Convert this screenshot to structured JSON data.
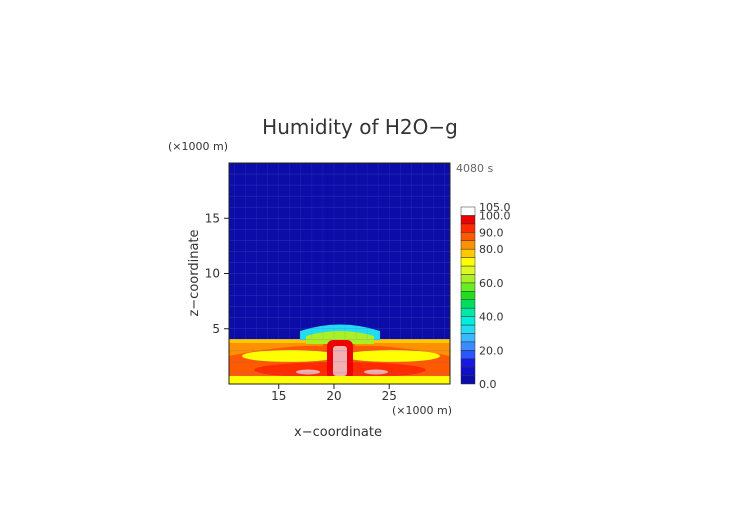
{
  "chart_data": {
    "type": "heatmap",
    "title": "Humidity of H2O−g",
    "time_label": "4080 s",
    "xlabel": "x−coordinate",
    "ylabel": "z−coordinate",
    "x_unit": "(×1000 m)",
    "y_unit": "(×1000 m)",
    "xlim": [
      10.5,
      30.5
    ],
    "ylim": [
      0,
      20
    ],
    "x_ticks": [
      15,
      20,
      25
    ],
    "x_tick_labels": [
      "15",
      "20",
      "25"
    ],
    "y_ticks": [
      5,
      10,
      15
    ],
    "y_tick_labels": [
      "5",
      "10",
      "15"
    ],
    "grid": true,
    "colorbar": {
      "levels": [
        0,
        5,
        10,
        15,
        20,
        25,
        30,
        35,
        40,
        45,
        50,
        55,
        60,
        65,
        70,
        75,
        80,
        85,
        90,
        95,
        100,
        105
      ],
      "colors": [
        "#0c0ca8",
        "#1010cc",
        "#1818e6",
        "#2a55ff",
        "#3b8bff",
        "#3ab8ff",
        "#22dcf2",
        "#00eedd",
        "#00e8a8",
        "#00dc60",
        "#22dc22",
        "#66ee22",
        "#aaf022",
        "#dcf722",
        "#ffff00",
        "#ffc800",
        "#ff9000",
        "#ff5a00",
        "#ff2a00",
        "#ee0000",
        "#ffffff"
      ],
      "labels": [
        "0.0",
        "20.0",
        "40.0",
        "60.0",
        "80.0",
        "90.0",
        "100.0",
        "105.0"
      ],
      "label_values": [
        0,
        20,
        40,
        60,
        80,
        90,
        100,
        105
      ]
    }
  }
}
